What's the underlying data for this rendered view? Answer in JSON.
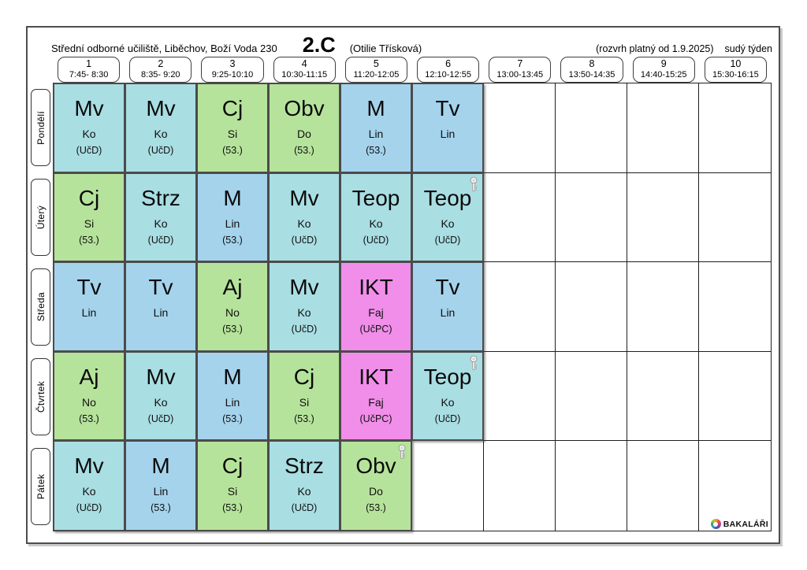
{
  "header": {
    "school": "Střední odborné učiliště, Liběchov, Boží Voda 230",
    "class_name": "2.C",
    "class_teacher": "(Otilie Třísková)",
    "validity": "(rozvrh platný od 1.9.2025)",
    "week_type": "sudý týden"
  },
  "periods": [
    {
      "num": "1",
      "time": "7:45- 8:30"
    },
    {
      "num": "2",
      "time": "8:35- 9:20"
    },
    {
      "num": "3",
      "time": "9:25-10:10"
    },
    {
      "num": "4",
      "time": "10:30-11:15"
    },
    {
      "num": "5",
      "time": "11:20-12:05"
    },
    {
      "num": "6",
      "time": "12:10-12:55"
    },
    {
      "num": "7",
      "time": "13:00-13:45"
    },
    {
      "num": "8",
      "time": "13:50-14:35"
    },
    {
      "num": "9",
      "time": "14:40-15:25"
    },
    {
      "num": "10",
      "time": "15:30-16:15"
    }
  ],
  "colors": {
    "cyan": "#a9dee3",
    "blue": "#a5d3ec",
    "green": "#b6e39b",
    "pink": "#f08ee9"
  },
  "days": [
    {
      "label": "Pondělí",
      "lessons": [
        {
          "period": 1,
          "subject": "Mv",
          "teacher": "Ko",
          "room": "(UčD)",
          "color": "cyan",
          "key": false
        },
        {
          "period": 2,
          "subject": "Mv",
          "teacher": "Ko",
          "room": "(UčD)",
          "color": "cyan",
          "key": false
        },
        {
          "period": 3,
          "subject": "Cj",
          "teacher": "Si",
          "room": "(53.)",
          "color": "green",
          "key": false
        },
        {
          "period": 4,
          "subject": "Obv",
          "teacher": "Do",
          "room": "(53.)",
          "color": "green",
          "key": false
        },
        {
          "period": 5,
          "subject": "M",
          "teacher": "Lin",
          "room": "(53.)",
          "color": "blue",
          "key": false
        },
        {
          "period": 6,
          "subject": "Tv",
          "teacher": "Lin",
          "room": "",
          "color": "blue",
          "key": false
        }
      ]
    },
    {
      "label": "Úterý",
      "lessons": [
        {
          "period": 1,
          "subject": "Cj",
          "teacher": "Si",
          "room": "(53.)",
          "color": "green",
          "key": false
        },
        {
          "period": 2,
          "subject": "Strz",
          "teacher": "Ko",
          "room": "(UčD)",
          "color": "cyan",
          "key": false
        },
        {
          "period": 3,
          "subject": "M",
          "teacher": "Lin",
          "room": "(53.)",
          "color": "blue",
          "key": false
        },
        {
          "period": 4,
          "subject": "Mv",
          "teacher": "Ko",
          "room": "(UčD)",
          "color": "cyan",
          "key": false
        },
        {
          "period": 5,
          "subject": "Teop",
          "teacher": "Ko",
          "room": "(UčD)",
          "color": "cyan",
          "key": false
        },
        {
          "period": 6,
          "subject": "Teop",
          "teacher": "Ko",
          "room": "(UčD)",
          "color": "cyan",
          "key": true
        }
      ]
    },
    {
      "label": "Středa",
      "lessons": [
        {
          "period": 1,
          "subject": "Tv",
          "teacher": "Lin",
          "room": "",
          "color": "blue",
          "key": false
        },
        {
          "period": 2,
          "subject": "Tv",
          "teacher": "Lin",
          "room": "",
          "color": "blue",
          "key": false
        },
        {
          "period": 3,
          "subject": "Aj",
          "teacher": "No",
          "room": "(53.)",
          "color": "green",
          "key": false
        },
        {
          "period": 4,
          "subject": "Mv",
          "teacher": "Ko",
          "room": "(UčD)",
          "color": "cyan",
          "key": false
        },
        {
          "period": 5,
          "subject": "IKT",
          "teacher": "Faj",
          "room": "(UčPC)",
          "color": "pink",
          "key": false
        },
        {
          "period": 6,
          "subject": "Tv",
          "teacher": "Lin",
          "room": "",
          "color": "blue",
          "key": false
        }
      ]
    },
    {
      "label": "Čtvrtek",
      "lessons": [
        {
          "period": 1,
          "subject": "Aj",
          "teacher": "No",
          "room": "(53.)",
          "color": "green",
          "key": false
        },
        {
          "period": 2,
          "subject": "Mv",
          "teacher": "Ko",
          "room": "(UčD)",
          "color": "cyan",
          "key": false
        },
        {
          "period": 3,
          "subject": "M",
          "teacher": "Lin",
          "room": "(53.)",
          "color": "blue",
          "key": false
        },
        {
          "period": 4,
          "subject": "Cj",
          "teacher": "Si",
          "room": "(53.)",
          "color": "green",
          "key": false
        },
        {
          "period": 5,
          "subject": "IKT",
          "teacher": "Faj",
          "room": "(UčPC)",
          "color": "pink",
          "key": false
        },
        {
          "period": 6,
          "subject": "Teop",
          "teacher": "Ko",
          "room": "(UčD)",
          "color": "cyan",
          "key": true
        }
      ]
    },
    {
      "label": "Pátek",
      "lessons": [
        {
          "period": 1,
          "subject": "Mv",
          "teacher": "Ko",
          "room": "(UčD)",
          "color": "cyan",
          "key": false
        },
        {
          "period": 2,
          "subject": "M",
          "teacher": "Lin",
          "room": "(53.)",
          "color": "blue",
          "key": false
        },
        {
          "period": 3,
          "subject": "Cj",
          "teacher": "Si",
          "room": "(53.)",
          "color": "green",
          "key": false
        },
        {
          "period": 4,
          "subject": "Strz",
          "teacher": "Ko",
          "room": "(UčD)",
          "color": "cyan",
          "key": false
        },
        {
          "period": 5,
          "subject": "Obv",
          "teacher": "Do",
          "room": "(53.)",
          "color": "green",
          "key": true
        }
      ]
    }
  ],
  "logo": {
    "text": "BAKALÁŘI"
  }
}
